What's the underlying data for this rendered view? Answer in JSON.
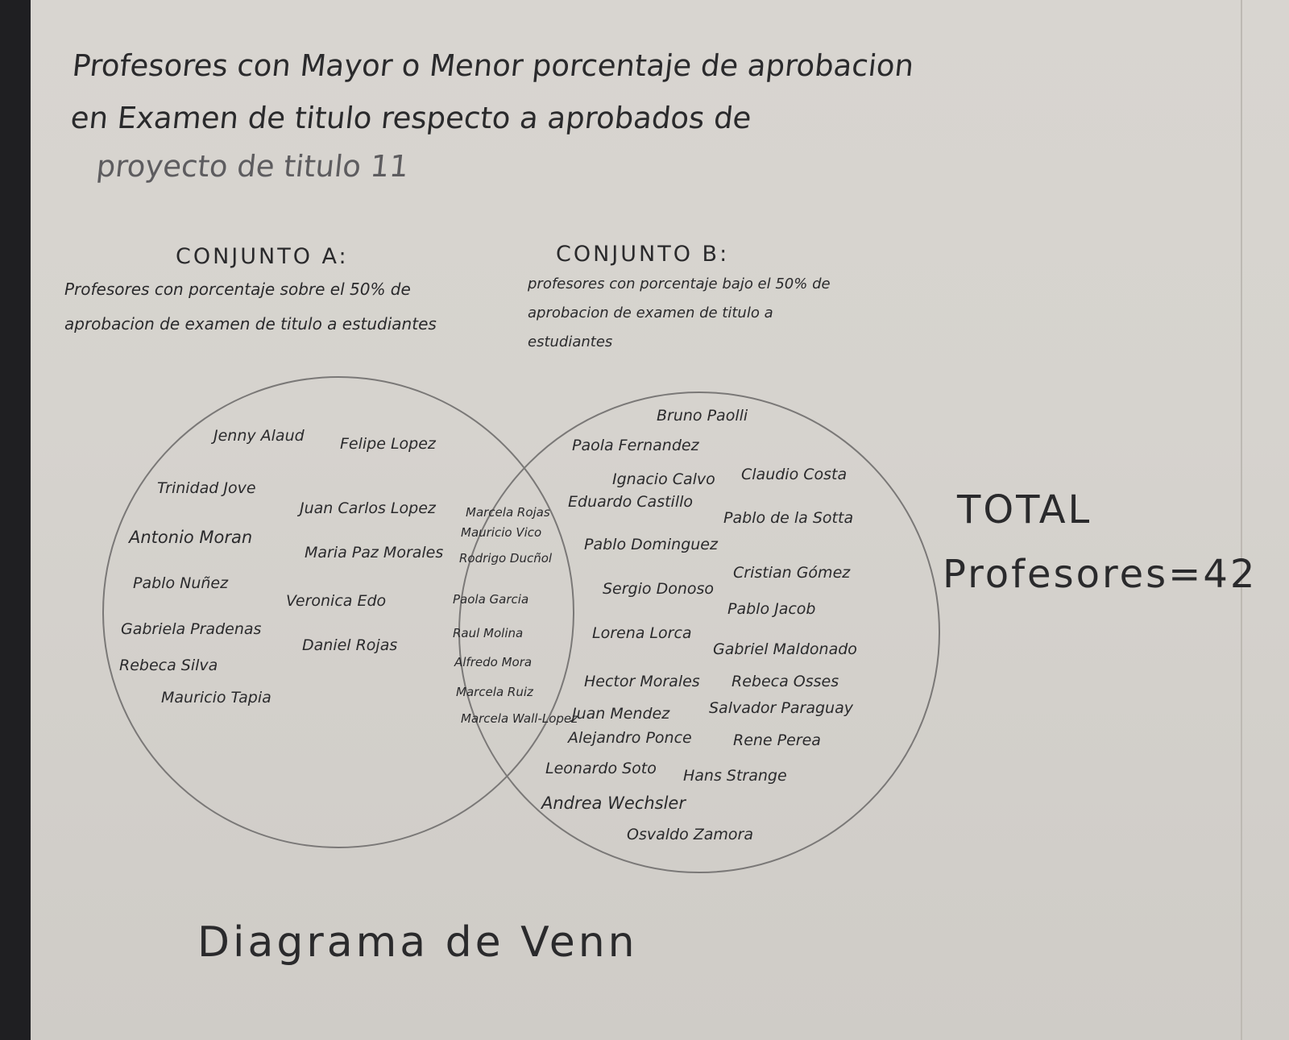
{
  "title": {
    "line1": "Profesores con Mayor o Menor porcentaje de aprobacion",
    "line2": "en Examen de titulo respecto a aprobados de",
    "line3": "proyecto de titulo 11"
  },
  "set_a": {
    "heading": "CONJUNTO A:",
    "description": "Profesores con porcentaje sobre el 50% de aprobacion de examen de titulo a estudiantes"
  },
  "set_b": {
    "heading": "CONJUNTO B:",
    "description": "profesores con porcentaje bajo el 50% de aprobacion de examen de titulo a estudiantes"
  },
  "total": {
    "line1": "TOTAL",
    "line2": "Profesores=42"
  },
  "footer": "Diagrama de Venn",
  "only_a": [
    "Jenny Alaud",
    "Felipe Lopez",
    "Trinidad Jove",
    "Juan Carlos Lopez",
    "Antonio Moran",
    "Maria Paz Morales",
    "Pablo Nuñez",
    "Veronica Edo",
    "Gabriela Pradenas",
    "Daniel Rojas",
    "Rebeca Silva",
    "Mauricio Tapia"
  ],
  "intersection": [
    "Marcela Rojas",
    "Mauricio Vico",
    "Rodrigo Ducñol",
    "Paola Garcia",
    "Raul Molina",
    "Alfredo Mora",
    "Marcela Ruiz",
    "Marcela Wall-Lopez"
  ],
  "only_b": [
    "Bruno Paolli",
    "Paola Fernandez",
    "Ignacio Calvo",
    "Claudio Costa",
    "Eduardo Castillo",
    "Pablo de la Sotta",
    "Pablo Dominguez",
    "Cristian Gómez",
    "Sergio Donoso",
    "Pablo Jacob",
    "Lorena Lorca",
    "Gabriel Maldonado",
    "Hector Morales",
    "Rebeca Osses",
    "Juan Mendez",
    "Salvador Paraguay",
    "Alejandro Ponce",
    "Rene Perea",
    "Leonardo Soto",
    "Hans Strange",
    "Andrea Wechsler",
    "Osvaldo Zamora"
  ]
}
